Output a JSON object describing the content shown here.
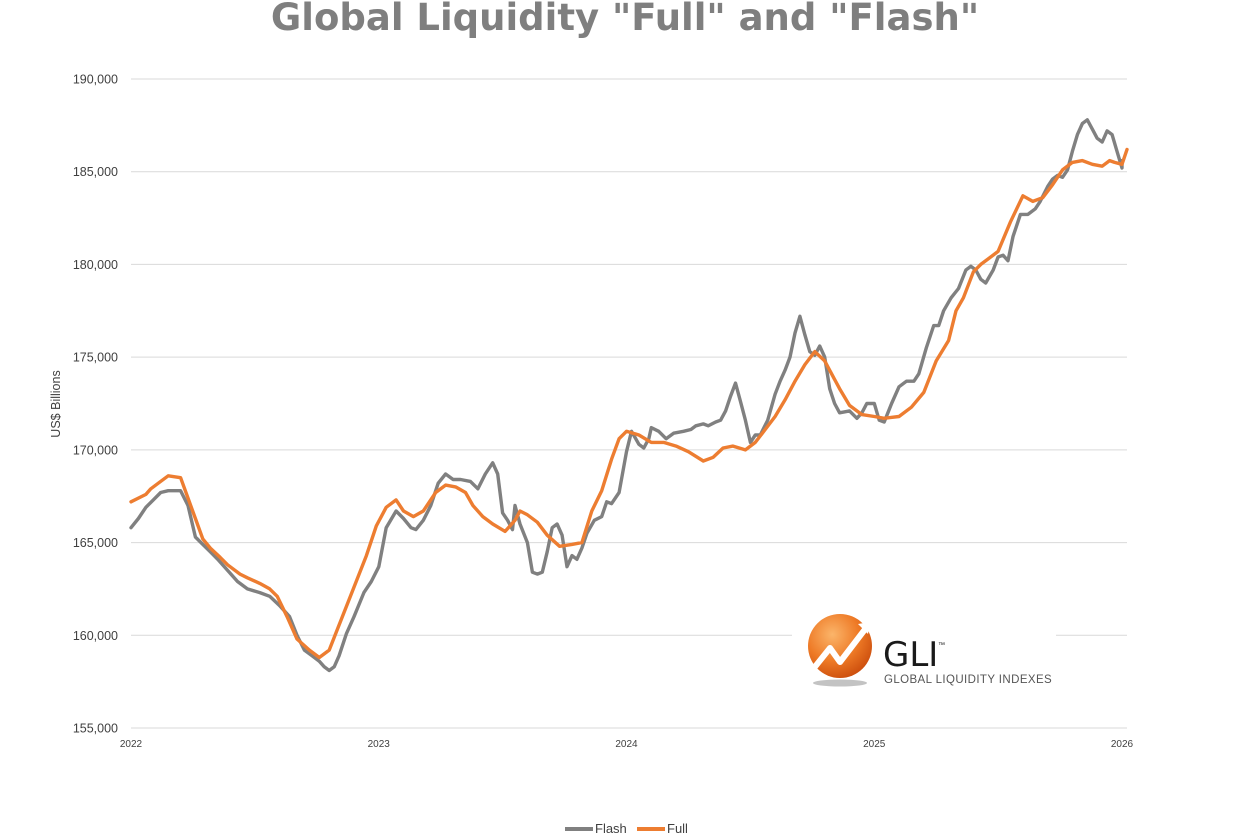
{
  "chart_data": {
    "type": "line",
    "title": "Global Liquidity \"Full\" and \"Flash\"",
    "ylabel": "US$ Billions",
    "xlabel": "",
    "ylim": [
      155000,
      190000
    ],
    "xlim": [
      2022,
      2026
    ],
    "y_ticks": [
      "155,000",
      "160,000",
      "165,000",
      "170,000",
      "175,000",
      "180,000",
      "185,000",
      "190,000"
    ],
    "x_ticks": [
      "2022",
      "2023",
      "2024",
      "2025",
      "2026"
    ],
    "grid": "horizontal",
    "legend_position": "bottom",
    "colors": {
      "Flash": "#808080",
      "Full": "#ed7d31",
      "grid": "#d9d9d9"
    },
    "series": [
      {
        "name": "Flash",
        "points": [
          [
            2022.0,
            165800
          ],
          [
            2022.03,
            166300
          ],
          [
            2022.06,
            166900
          ],
          [
            2022.09,
            167300
          ],
          [
            2022.12,
            167700
          ],
          [
            2022.15,
            167800
          ],
          [
            2022.2,
            167800
          ],
          [
            2022.23,
            167000
          ],
          [
            2022.26,
            165300
          ],
          [
            2022.29,
            164900
          ],
          [
            2022.32,
            164500
          ],
          [
            2022.35,
            164100
          ],
          [
            2022.39,
            163500
          ],
          [
            2022.43,
            162900
          ],
          [
            2022.47,
            162500
          ],
          [
            2022.52,
            162300
          ],
          [
            2022.56,
            162100
          ],
          [
            2022.6,
            161600
          ],
          [
            2022.64,
            161000
          ],
          [
            2022.67,
            160000
          ],
          [
            2022.7,
            159200
          ],
          [
            2022.73,
            158900
          ],
          [
            2022.76,
            158600
          ],
          [
            2022.78,
            158300
          ],
          [
            2022.8,
            158100
          ],
          [
            2022.82,
            158300
          ],
          [
            2022.84,
            158900
          ],
          [
            2022.87,
            160100
          ],
          [
            2022.9,
            161000
          ],
          [
            2022.94,
            162300
          ],
          [
            2022.97,
            162900
          ],
          [
            2023.0,
            163700
          ],
          [
            2023.03,
            165800
          ],
          [
            2023.07,
            166700
          ],
          [
            2023.1,
            166300
          ],
          [
            2023.13,
            165800
          ],
          [
            2023.15,
            165700
          ],
          [
            2023.18,
            166200
          ],
          [
            2023.21,
            167000
          ],
          [
            2023.24,
            168200
          ],
          [
            2023.27,
            168700
          ],
          [
            2023.3,
            168400
          ],
          [
            2023.33,
            168400
          ],
          [
            2023.37,
            168300
          ],
          [
            2023.4,
            167900
          ],
          [
            2023.43,
            168700
          ],
          [
            2023.46,
            169300
          ],
          [
            2023.48,
            168700
          ],
          [
            2023.5,
            166600
          ],
          [
            2023.52,
            166200
          ],
          [
            2023.54,
            165700
          ],
          [
            2023.55,
            167000
          ],
          [
            2023.57,
            166000
          ],
          [
            2023.6,
            165000
          ],
          [
            2023.62,
            163400
          ],
          [
            2023.64,
            163300
          ],
          [
            2023.66,
            163400
          ],
          [
            2023.68,
            164500
          ],
          [
            2023.7,
            165800
          ],
          [
            2023.72,
            166000
          ],
          [
            2023.74,
            165400
          ],
          [
            2023.76,
            163700
          ],
          [
            2023.78,
            164300
          ],
          [
            2023.8,
            164100
          ],
          [
            2023.82,
            164700
          ],
          [
            2023.84,
            165500
          ],
          [
            2023.87,
            166200
          ],
          [
            2023.9,
            166400
          ],
          [
            2023.92,
            167200
          ],
          [
            2023.94,
            167100
          ],
          [
            2023.97,
            167700
          ],
          [
            2024.0,
            169900
          ],
          [
            2024.02,
            171000
          ],
          [
            2024.05,
            170300
          ],
          [
            2024.07,
            170100
          ],
          [
            2024.09,
            170600
          ],
          [
            2024.1,
            171200
          ],
          [
            2024.13,
            171000
          ],
          [
            2024.16,
            170600
          ],
          [
            2024.19,
            170900
          ],
          [
            2024.23,
            171000
          ],
          [
            2024.26,
            171100
          ],
          [
            2024.28,
            171300
          ],
          [
            2024.31,
            171400
          ],
          [
            2024.33,
            171300
          ],
          [
            2024.36,
            171500
          ],
          [
            2024.38,
            171600
          ],
          [
            2024.4,
            172100
          ],
          [
            2024.42,
            172900
          ],
          [
            2024.44,
            173600
          ],
          [
            2024.46,
            172600
          ],
          [
            2024.48,
            171600
          ],
          [
            2024.5,
            170400
          ],
          [
            2024.52,
            170800
          ],
          [
            2024.54,
            170800
          ],
          [
            2024.57,
            171600
          ],
          [
            2024.6,
            173000
          ],
          [
            2024.62,
            173700
          ],
          [
            2024.64,
            174300
          ],
          [
            2024.66,
            175000
          ],
          [
            2024.68,
            176300
          ],
          [
            2024.7,
            177200
          ],
          [
            2024.72,
            176200
          ],
          [
            2024.74,
            175300
          ],
          [
            2024.76,
            175100
          ],
          [
            2024.78,
            175600
          ],
          [
            2024.8,
            175000
          ],
          [
            2024.82,
            173300
          ],
          [
            2024.84,
            172500
          ],
          [
            2024.86,
            172000
          ],
          [
            2024.9,
            172100
          ],
          [
            2024.93,
            171700
          ],
          [
            2024.95,
            172000
          ],
          [
            2024.97,
            172500
          ],
          [
            2025.0,
            172500
          ],
          [
            2025.02,
            171600
          ],
          [
            2025.04,
            171500
          ],
          [
            2025.07,
            172500
          ],
          [
            2025.1,
            173400
          ],
          [
            2025.13,
            173700
          ],
          [
            2025.16,
            173700
          ],
          [
            2025.18,
            174100
          ],
          [
            2025.21,
            175500
          ],
          [
            2025.24,
            176700
          ],
          [
            2025.26,
            176700
          ],
          [
            2025.28,
            177500
          ],
          [
            2025.31,
            178200
          ],
          [
            2025.34,
            178700
          ],
          [
            2025.37,
            179700
          ],
          [
            2025.39,
            179900
          ],
          [
            2025.41,
            179700
          ],
          [
            2025.43,
            179200
          ],
          [
            2025.45,
            179000
          ],
          [
            2025.48,
            179700
          ],
          [
            2025.5,
            180400
          ],
          [
            2025.52,
            180500
          ],
          [
            2025.54,
            180200
          ],
          [
            2025.56,
            181500
          ],
          [
            2025.59,
            182700
          ],
          [
            2025.62,
            182700
          ],
          [
            2025.65,
            183000
          ],
          [
            2025.67,
            183400
          ],
          [
            2025.7,
            184200
          ],
          [
            2025.72,
            184600
          ],
          [
            2025.74,
            184800
          ],
          [
            2025.76,
            184700
          ],
          [
            2025.78,
            185100
          ],
          [
            2025.8,
            186100
          ],
          [
            2025.82,
            187000
          ],
          [
            2025.84,
            187600
          ],
          [
            2025.86,
            187800
          ],
          [
            2025.88,
            187300
          ],
          [
            2025.9,
            186800
          ],
          [
            2025.92,
            186600
          ],
          [
            2025.94,
            187200
          ],
          [
            2025.96,
            187000
          ],
          [
            2025.98,
            186100
          ],
          [
            2026.0,
            185200
          ],
          [
            2026.0,
            185600
          ]
        ]
      },
      {
        "name": "Full",
        "points": [
          [
            2022.0,
            167200
          ],
          [
            2022.03,
            167400
          ],
          [
            2022.06,
            167600
          ],
          [
            2022.08,
            167900
          ],
          [
            2022.11,
            168200
          ],
          [
            2022.15,
            168600
          ],
          [
            2022.2,
            168500
          ],
          [
            2022.23,
            167400
          ],
          [
            2022.26,
            166300
          ],
          [
            2022.29,
            165200
          ],
          [
            2022.32,
            164700
          ],
          [
            2022.36,
            164200
          ],
          [
            2022.39,
            163800
          ],
          [
            2022.44,
            163300
          ],
          [
            2022.47,
            163100
          ],
          [
            2022.52,
            162800
          ],
          [
            2022.56,
            162500
          ],
          [
            2022.59,
            162100
          ],
          [
            2022.63,
            161000
          ],
          [
            2022.67,
            159800
          ],
          [
            2022.72,
            159200
          ],
          [
            2022.76,
            158800
          ],
          [
            2022.8,
            159200
          ],
          [
            2022.85,
            160900
          ],
          [
            2022.9,
            162600
          ],
          [
            2022.95,
            164300
          ],
          [
            2022.99,
            165900
          ],
          [
            2023.03,
            166900
          ],
          [
            2023.07,
            167300
          ],
          [
            2023.1,
            166700
          ],
          [
            2023.14,
            166400
          ],
          [
            2023.18,
            166700
          ],
          [
            2023.23,
            167700
          ],
          [
            2023.27,
            168100
          ],
          [
            2023.31,
            168000
          ],
          [
            2023.35,
            167700
          ],
          [
            2023.38,
            167000
          ],
          [
            2023.42,
            166400
          ],
          [
            2023.46,
            166000
          ],
          [
            2023.51,
            165600
          ],
          [
            2023.55,
            166200
          ],
          [
            2023.57,
            166700
          ],
          [
            2023.6,
            166500
          ],
          [
            2023.64,
            166100
          ],
          [
            2023.68,
            165400
          ],
          [
            2023.73,
            164800
          ],
          [
            2023.78,
            164900
          ],
          [
            2023.82,
            165000
          ],
          [
            2023.86,
            166700
          ],
          [
            2023.9,
            167800
          ],
          [
            2023.94,
            169500
          ],
          [
            2023.97,
            170600
          ],
          [
            2024.0,
            171000
          ],
          [
            2024.05,
            170800
          ],
          [
            2024.1,
            170400
          ],
          [
            2024.15,
            170400
          ],
          [
            2024.2,
            170200
          ],
          [
            2024.25,
            169900
          ],
          [
            2024.31,
            169400
          ],
          [
            2024.35,
            169600
          ],
          [
            2024.39,
            170100
          ],
          [
            2024.43,
            170200
          ],
          [
            2024.48,
            170000
          ],
          [
            2024.52,
            170400
          ],
          [
            2024.56,
            171100
          ],
          [
            2024.6,
            171800
          ],
          [
            2024.64,
            172700
          ],
          [
            2024.68,
            173700
          ],
          [
            2024.72,
            174600
          ],
          [
            2024.76,
            175300
          ],
          [
            2024.8,
            174800
          ],
          [
            2024.84,
            173800
          ],
          [
            2024.86,
            173300
          ],
          [
            2024.9,
            172400
          ],
          [
            2024.95,
            171900
          ],
          [
            2025.0,
            171800
          ],
          [
            2025.04,
            171700
          ],
          [
            2025.1,
            171800
          ],
          [
            2025.15,
            172300
          ],
          [
            2025.2,
            173100
          ],
          [
            2025.25,
            174800
          ],
          [
            2025.3,
            175900
          ],
          [
            2025.33,
            177500
          ],
          [
            2025.36,
            178200
          ],
          [
            2025.4,
            179600
          ],
          [
            2025.43,
            180000
          ],
          [
            2025.46,
            180300
          ],
          [
            2025.5,
            180700
          ],
          [
            2025.55,
            182300
          ],
          [
            2025.6,
            183700
          ],
          [
            2025.64,
            183400
          ],
          [
            2025.68,
            183600
          ],
          [
            2025.72,
            184300
          ],
          [
            2025.76,
            185100
          ],
          [
            2025.8,
            185500
          ],
          [
            2025.84,
            185600
          ],
          [
            2025.88,
            185400
          ],
          [
            2025.92,
            185300
          ],
          [
            2025.95,
            185600
          ],
          [
            2025.97,
            185500
          ],
          [
            2026.0,
            185400
          ],
          [
            2026.02,
            186200
          ]
        ]
      }
    ]
  },
  "logo": {
    "name": "GLI",
    "tagline": "GLOBAL LIQUIDITY INDEXES",
    "trademark": "™",
    "colors": {
      "sphere_light": "#f7a04a",
      "sphere_dark": "#d4530e",
      "text": "#1a1a1a"
    }
  }
}
